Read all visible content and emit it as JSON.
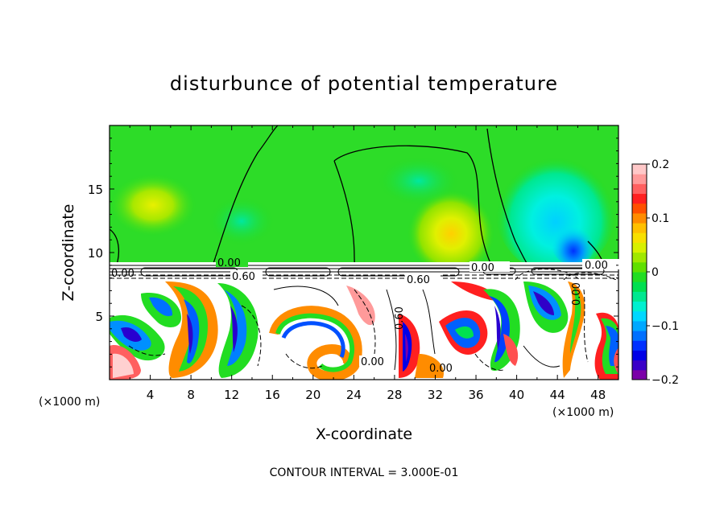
{
  "chart_data": {
    "type": "heatmap",
    "title": "disturbunce of potential temperature",
    "xlabel": "X-coordinate",
    "ylabel": "Z-coordinate",
    "x_unit": "(×1000 m)",
    "y_unit": "(×1000 m)",
    "xlim": [
      0,
      50
    ],
    "ylim": [
      0,
      20
    ],
    "x_ticks": [
      "4",
      "8",
      "12",
      "16",
      "20",
      "24",
      "28",
      "32",
      "36",
      "40",
      "44",
      "48"
    ],
    "y_ticks": [
      "5",
      "10",
      "15"
    ],
    "colorbar": {
      "range": [
        -0.2,
        0.2
      ],
      "labels": [
        "0.2",
        "0.1",
        "0",
        "−0.1",
        "−0.2"
      ],
      "colors": [
        "#7b00a8",
        "#3a00c8",
        "#0000e6",
        "#0030ff",
        "#0070ff",
        "#00a8ff",
        "#00d8ff",
        "#00f0d0",
        "#00e890",
        "#00e050",
        "#22dd22",
        "#60e000",
        "#a0e800",
        "#d8f000",
        "#f8e000",
        "#ffc000",
        "#ff8c00",
        "#ff5000",
        "#ff2020",
        "#ff6060",
        "#ff9a9a",
        "#ffc8c8"
      ]
    },
    "contour_labels": [
      "0.00",
      "0.00",
      "0.00",
      "0.00",
      "0.60",
      "0.60",
      "0.60",
      "0.00",
      "0.00",
      "0.00"
    ],
    "contour_interval_text": "CONTOUR INTERVAL = 3.000E-01"
  }
}
